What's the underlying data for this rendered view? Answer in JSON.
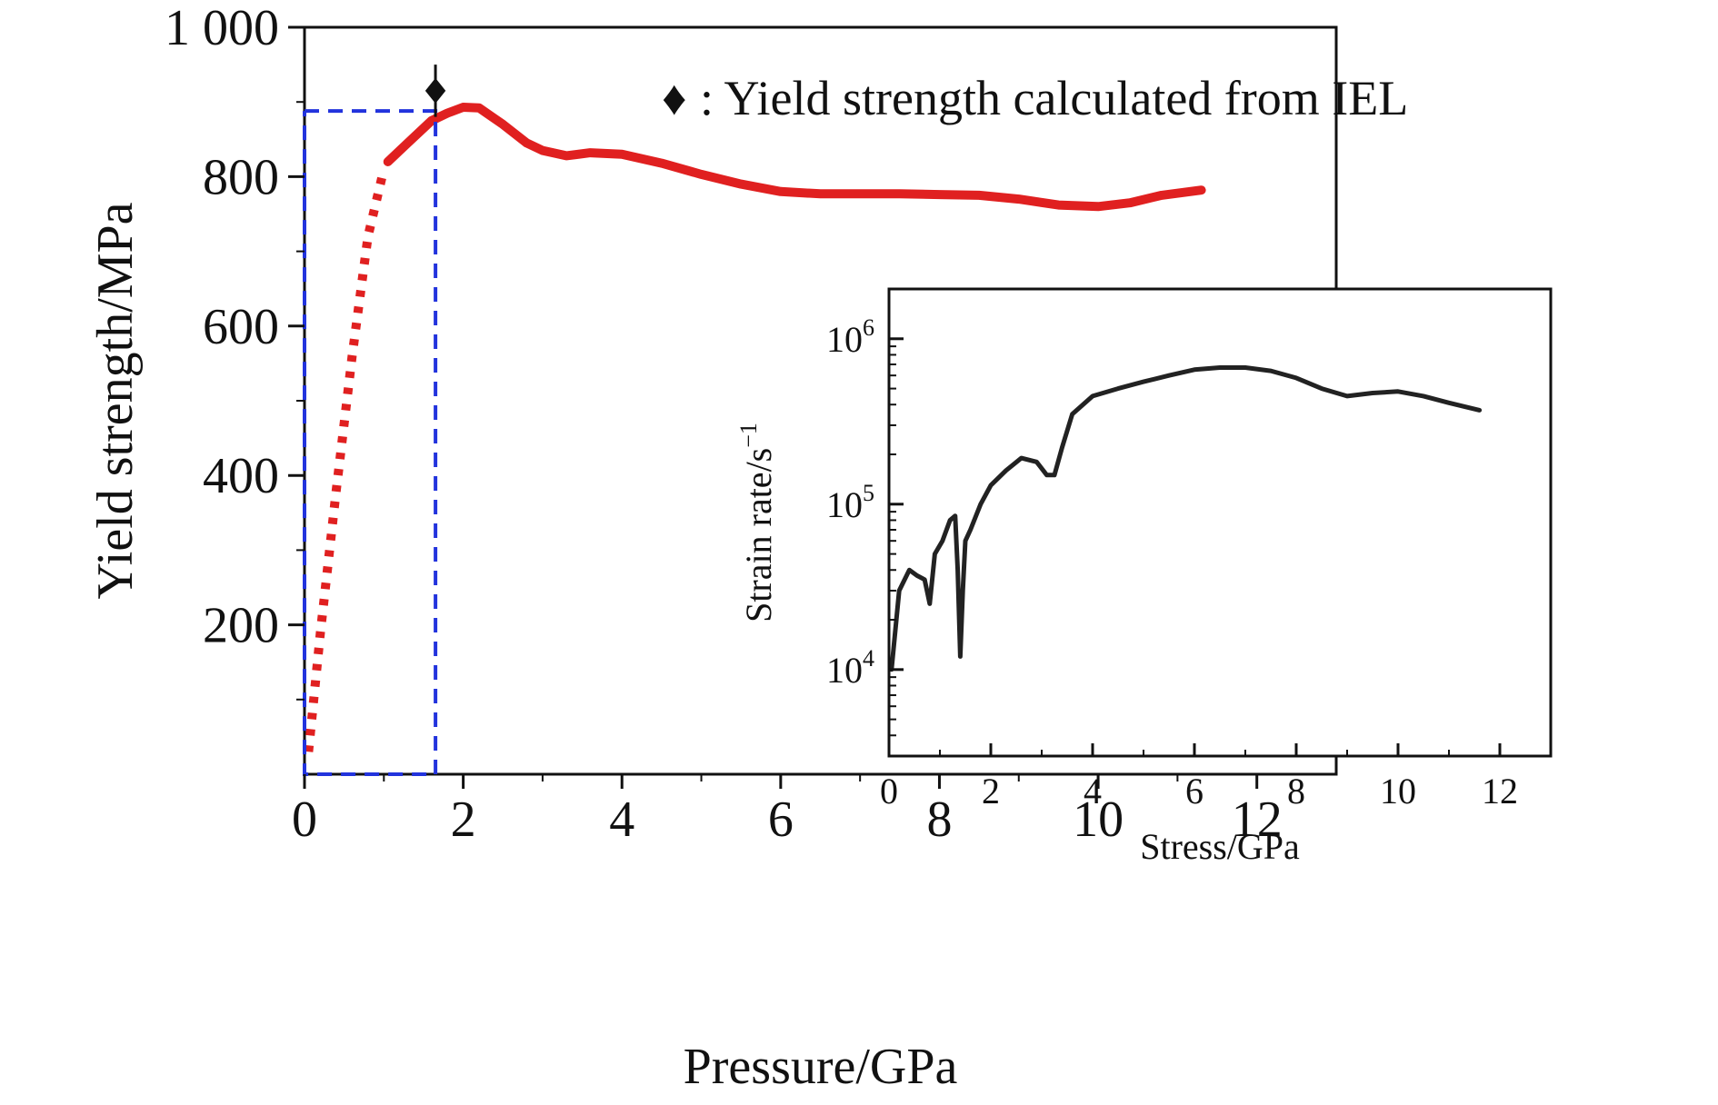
{
  "chart_data": [
    {
      "type": "line",
      "xlabel": "Pressure/GPa",
      "ylabel": "Yield strength/MPa",
      "xlim": [
        0,
        13
      ],
      "ylim": [
        0,
        1000
      ],
      "xticks": [
        0,
        2,
        4,
        6,
        8,
        10,
        12
      ],
      "yticks": [
        200,
        400,
        600,
        800,
        1000
      ],
      "ytick_labels": [
        "200",
        "400",
        "600",
        "800",
        "1 000"
      ],
      "grid": false,
      "legend": {
        "position": "top-right",
        "entries": [
          {
            "marker": "♦",
            "text": ": Yield strength calculated from IEL"
          }
        ]
      },
      "series": [
        {
          "style": "dotted",
          "color": "#e02020",
          "x": [
            0.05,
            0.2,
            0.4,
            0.6,
            0.8,
            1.0
          ],
          "y": [
            30,
            190,
            380,
            560,
            720,
            810
          ]
        },
        {
          "style": "solid",
          "color": "#e02020",
          "x": [
            1.05,
            1.3,
            1.6,
            1.8,
            2.0,
            2.2,
            2.5,
            2.8,
            3.0,
            3.3,
            3.6,
            4.0,
            4.5,
            5.0,
            5.5,
            6.0,
            6.5,
            7.0,
            7.5,
            8.0,
            8.5,
            9.0,
            9.5,
            10.0,
            10.4,
            10.8,
            11.3
          ],
          "y": [
            820,
            845,
            875,
            885,
            893,
            892,
            870,
            845,
            835,
            828,
            832,
            830,
            818,
            803,
            790,
            780,
            777,
            777,
            777,
            776,
            775,
            770,
            762,
            760,
            765,
            775,
            782
          ]
        },
        {
          "style": "dashed",
          "color": "#2233dd",
          "x": [
            0,
            1.65,
            1.65,
            0,
            0
          ],
          "y": [
            888,
            888,
            0,
            0,
            888
          ]
        }
      ],
      "points": [
        {
          "marker": "diamond",
          "color": "#111111",
          "x": 1.65,
          "y": 915,
          "err": 35
        }
      ]
    },
    {
      "type": "line",
      "xlabel": "Stress/GPa",
      "ylabel": "Strain rate/s",
      "ylabel_sup": "−1",
      "xlim": [
        0,
        13
      ],
      "ylim": [
        3000,
        2000000
      ],
      "yscale": "log",
      "xticks": [
        0,
        2,
        4,
        6,
        8,
        10,
        12
      ],
      "yticks": [
        {
          "value": 10000,
          "base": "10",
          "exp": "4"
        },
        {
          "value": 100000,
          "base": "10",
          "exp": "5"
        },
        {
          "value": 1000000,
          "base": "10",
          "exp": "6"
        }
      ],
      "grid": false,
      "series": [
        {
          "color": "#222222",
          "x": [
            0.05,
            0.2,
            0.4,
            0.55,
            0.7,
            0.8,
            0.9,
            1.05,
            1.2,
            1.3,
            1.35,
            1.4,
            1.45,
            1.5,
            1.6,
            1.8,
            2.0,
            2.3,
            2.6,
            2.9,
            3.1,
            3.25,
            3.4,
            3.6,
            4.0,
            4.5,
            5.0,
            5.5,
            6.0,
            6.5,
            7.0,
            7.5,
            8.0,
            8.5,
            9.0,
            9.5,
            10.0,
            10.5,
            11.0,
            11.6
          ],
          "y": [
            10000,
            30000,
            40000,
            37000,
            35000,
            25000,
            50000,
            60000,
            80000,
            85000,
            40000,
            12000,
            30000,
            60000,
            70000,
            100000,
            130000,
            160000,
            190000,
            180000,
            150000,
            150000,
            220000,
            350000,
            450000,
            500000,
            550000,
            600000,
            650000,
            670000,
            670000,
            640000,
            580000,
            500000,
            450000,
            470000,
            480000,
            450000,
            410000,
            370000
          ]
        }
      ]
    }
  ]
}
